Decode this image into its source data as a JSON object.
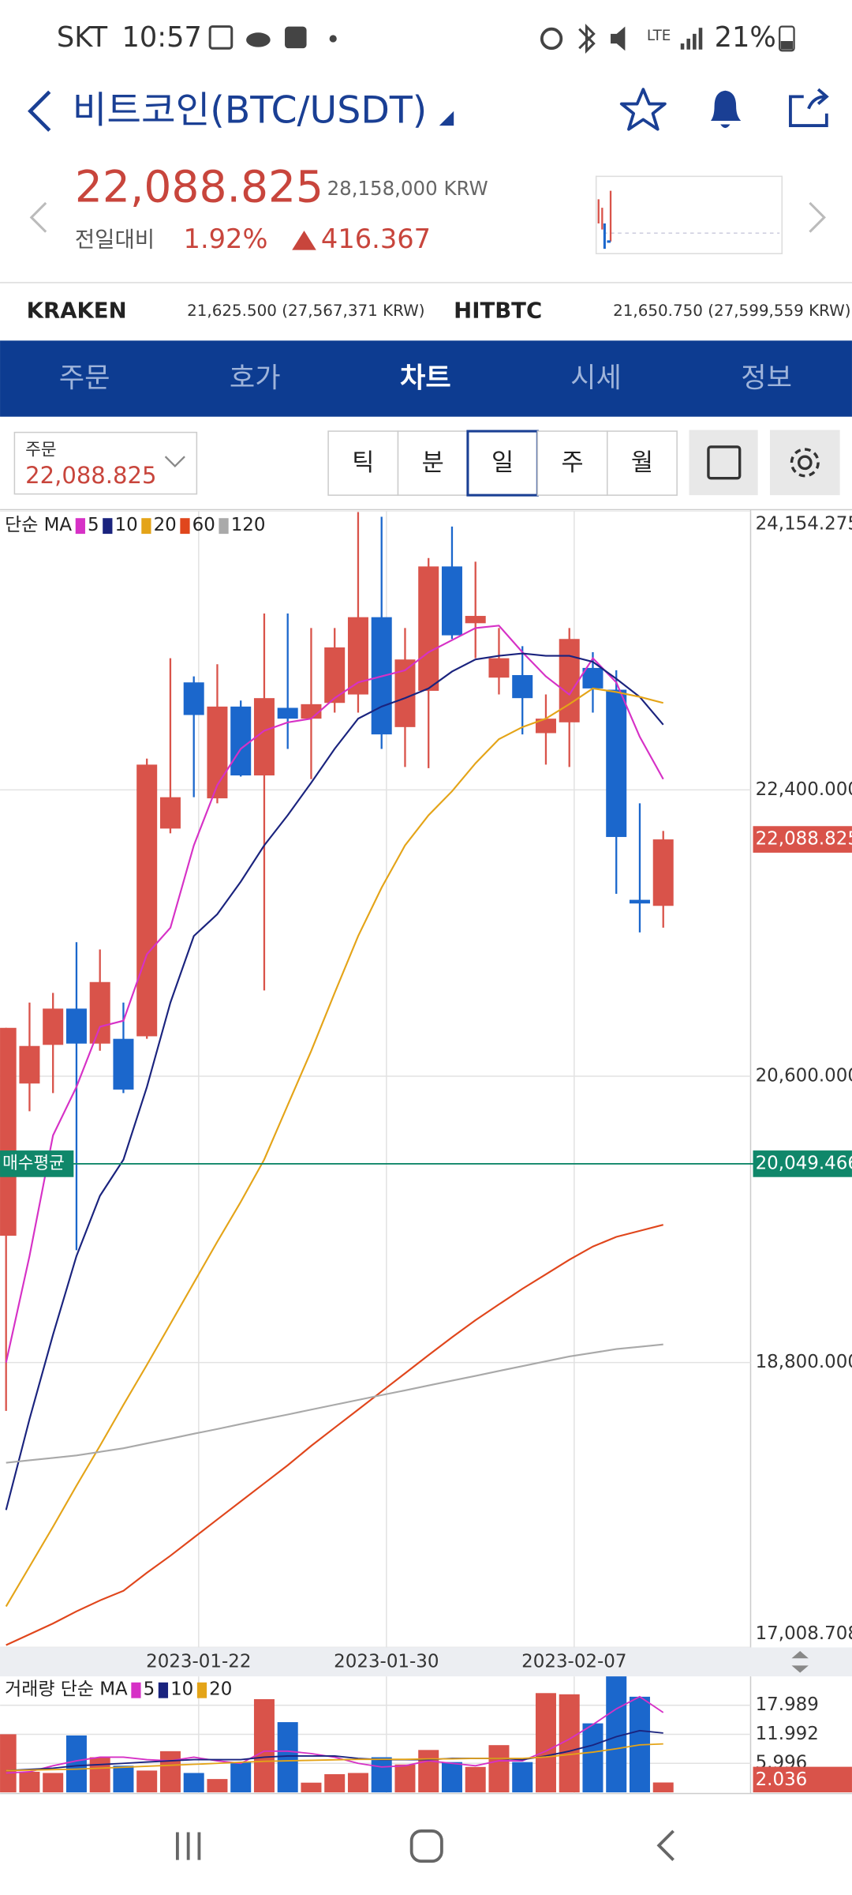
{
  "status_bar": {
    "carrier": "SKT",
    "time": "10:57",
    "battery": "21%"
  },
  "header": {
    "title": "비트코인(BTC/USDT)",
    "price": "22,088.825",
    "krw": "28,158,000 KRW",
    "change_label": "전일대비",
    "change_pct": "1.92%",
    "change_abs": "416.367"
  },
  "exchanges": [
    {
      "name": "KRAKEN",
      "price": "21,625.500 (27,567,371 KRW)"
    },
    {
      "name": "HITBTC",
      "price": "21,650.750 (27,599,559 KRW)"
    }
  ],
  "tabs": [
    "주문",
    "호가",
    "차트",
    "시세",
    "정보"
  ],
  "active_tab": 2,
  "order_box": {
    "label": "주문",
    "price": "22,088.825"
  },
  "periods": [
    "틱",
    "분",
    "일",
    "주",
    "월"
  ],
  "active_period": 2,
  "chart_data": [
    {
      "type": "candlestick",
      "legend_title": "단순 MA",
      "categories": [
        null,
        null,
        null,
        null,
        null,
        null,
        null,
        null,
        "2023-01-22",
        null,
        null,
        null,
        null,
        null,
        null,
        null,
        "2023-01-30",
        null,
        null,
        null,
        null,
        null,
        null,
        null,
        "2023-02-07",
        null,
        null,
        null,
        null
      ],
      "open": [
        19597,
        20554,
        20797,
        21025,
        20805,
        20835,
        20851,
        22157,
        23076,
        22347,
        22924,
        22491,
        22916,
        22848,
        22947,
        23000,
        23486,
        22795,
        23023,
        23805,
        23448,
        23106,
        23122,
        22757,
        22825,
        23167,
        23030,
        21709,
        21671
      ],
      "high": [
        20904,
        21063,
        21124,
        21443,
        21397,
        21063,
        22597,
        23228,
        23114,
        23190,
        22962,
        23509,
        23509,
        23418,
        23418,
        24147,
        24117,
        23418,
        23858,
        24056,
        23835,
        23418,
        23304,
        23000,
        23418,
        23266,
        23152,
        22316,
        22142
      ],
      "low": [
        18496,
        20380,
        20494,
        19506,
        20760,
        20494,
        20835,
        22127,
        22354,
        22316,
        22484,
        21139,
        22658,
        22468,
        22886,
        22886,
        22658,
        22544,
        22537,
        23349,
        23228,
        23000,
        22749,
        22559,
        22544,
        22886,
        21747,
        21504,
        21534
      ],
      "close": [
        20904,
        20790,
        21025,
        20805,
        21192,
        20516,
        22559,
        22354,
        22871,
        22924,
        22491,
        22977,
        22848,
        22939,
        23296,
        23486,
        22749,
        23220,
        23805,
        23372,
        23494,
        23228,
        22977,
        22848,
        23349,
        23038,
        22104,
        21686,
        22088.825
      ],
      "up_color": "#d9534a",
      "down_color": "#1b67cc",
      "series": [
        {
          "name": "5",
          "color": "#d631c6",
          "values": [
            18800,
            19468,
            20228,
            20532,
            20911,
            20949,
            21367,
            21534,
            22051,
            22430,
            22658,
            22772,
            22825,
            22848,
            22977,
            23076,
            23114,
            23152,
            23266,
            23342,
            23418,
            23433,
            23266,
            23114,
            22999,
            23228,
            23076,
            22734,
            22468
          ]
        },
        {
          "name": "10",
          "color": "#1a237e",
          "values": [
            17873,
            18443,
            18975,
            19468,
            19848,
            20076,
            20532,
            21063,
            21481,
            21618,
            21823,
            22051,
            22241,
            22446,
            22658,
            22848,
            22924,
            22977,
            23038,
            23144,
            23220,
            23243,
            23258,
            23243,
            23243,
            23205,
            23099,
            22985,
            22810
          ]
        },
        {
          "name": "20",
          "color": "#e4a418",
          "values": [
            17266,
            17516,
            17767,
            18025,
            18276,
            18534,
            18785,
            19043,
            19301,
            19559,
            19810,
            20076,
            20418,
            20759,
            21124,
            21481,
            21785,
            22051,
            22241,
            22392,
            22567,
            22719,
            22795,
            22848,
            22939,
            23038,
            23015,
            22985,
            22947
          ]
        },
        {
          "name": "60",
          "color": "#e0461c",
          "values": [
            17023,
            17091,
            17159,
            17235,
            17304,
            17365,
            17478,
            17585,
            17699,
            17813,
            17927,
            18040,
            18154,
            18276,
            18390,
            18504,
            18618,
            18732,
            18846,
            18959,
            19066,
            19165,
            19263,
            19354,
            19446,
            19529,
            19590,
            19628,
            19666
          ]
        },
        {
          "name": "120",
          "color": "#a9a9a9",
          "values": [
            18170,
            18185,
            18200,
            18215,
            18238,
            18261,
            18291,
            18321,
            18352,
            18382,
            18413,
            18443,
            18473,
            18504,
            18534,
            18565,
            18595,
            18625,
            18656,
            18686,
            18716,
            18747,
            18777,
            18808,
            18838,
            18861,
            18884,
            18899,
            18914
          ]
        }
      ],
      "ylim": [
        17008.708,
        24154.275
      ],
      "yticks": [
        {
          "value": 24154.275,
          "label": "24,154.275"
        },
        {
          "value": 22400,
          "label": "22,400.000"
        },
        {
          "value": 20600,
          "label": "20,600.000"
        },
        {
          "value": 18800,
          "label": "18,800.000"
        },
        {
          "value": 17008.708,
          "label": "17,008.708"
        }
      ],
      "grid": true,
      "average_line": {
        "label": "매수평균",
        "value": 20049.466,
        "value_label": "20,049.466",
        "color": "#10876a"
      },
      "current": {
        "value": 22088.825,
        "label": "22,088.825"
      }
    },
    {
      "type": "bar",
      "legend_title": "거래량 단순 MA",
      "values": [
        12,
        4.25,
        4,
        11.75,
        7.25,
        5.5,
        4.5,
        8.5,
        4,
        2.75,
        6.25,
        19.25,
        14.5,
        2,
        3.75,
        4,
        7.25,
        5.75,
        8.75,
        6.25,
        5.25,
        9.75,
        6.25,
        20.5,
        20.25,
        14.25,
        24,
        19.75,
        2.036
      ],
      "series": [
        {
          "name": "5",
          "color": "#d631c6",
          "values": [
            4,
            4.25,
            5.5,
            6.5,
            7.25,
            7.25,
            6.75,
            6.5,
            7.25,
            6.5,
            6,
            8.5,
            8.5,
            8,
            7.25,
            6,
            5.25,
            5.5,
            6.5,
            6,
            5.5,
            6.5,
            6.5,
            8.5,
            11,
            14,
            17.25,
            19.75,
            16.5
          ]
        },
        {
          "name": "10",
          "color": "#1a237e",
          "values": [
            4.5,
            4.75,
            5,
            5.5,
            5.75,
            6,
            6.25,
            6.5,
            6.75,
            6.75,
            6.75,
            7.25,
            7.5,
            7.5,
            7.5,
            7,
            6.75,
            6.75,
            6.75,
            7,
            7,
            7,
            6.75,
            7.5,
            8.5,
            9.75,
            11.5,
            12.75,
            12.25
          ]
        },
        {
          "name": "20",
          "color": "#e4a418",
          "values": [
            4.5,
            4.6,
            4.7,
            4.8,
            5,
            5.2,
            5.4,
            5.6,
            5.8,
            6,
            6.2,
            6.4,
            6.5,
            6.6,
            6.7,
            6.8,
            6.8,
            6.8,
            6.9,
            6.9,
            7,
            7,
            7,
            7.3,
            7.8,
            8.3,
            9,
            9.8,
            10
          ]
        }
      ],
      "ylim": [
        0,
        24.2
      ],
      "yticks": [
        17.989,
        11.992,
        5.996
      ],
      "current": {
        "value": 2.036,
        "label": "2.036"
      }
    }
  ]
}
